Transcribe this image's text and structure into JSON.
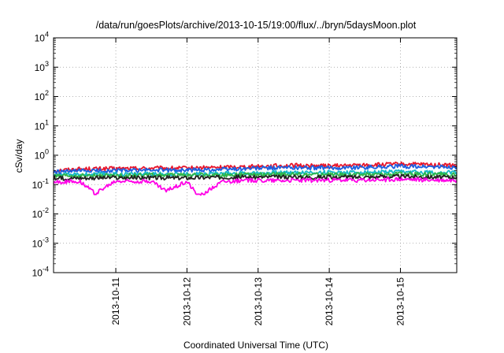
{
  "chart_data": {
    "type": "line",
    "title": "/data/run/goesPlots/archive/2013-10-15/19:00/flux/../bryn/5daysMoon.plot",
    "xlabel": "Coordinated Universal Time (UTC)",
    "ylabel": "cSv/day",
    "yscale": "log",
    "ylim": [
      0.0001,
      10000
    ],
    "xlim": [
      "2013-10-10T03:00",
      "2013-10-15T19:00"
    ],
    "grid": true,
    "legend": "none",
    "y_ticks": [
      {
        "base": "10",
        "exp": "-4"
      },
      {
        "base": "10",
        "exp": "-3"
      },
      {
        "base": "10",
        "exp": "-2"
      },
      {
        "base": "10",
        "exp": "-1"
      },
      {
        "base": "10",
        "exp": "0"
      },
      {
        "base": "10",
        "exp": "1"
      },
      {
        "base": "10",
        "exp": "2"
      },
      {
        "base": "10",
        "exp": "3"
      },
      {
        "base": "10",
        "exp": "4"
      }
    ],
    "x_ticks": [
      "2013-10-11",
      "2013-10-12",
      "2013-10-13",
      "2013-10-14",
      "2013-10-15"
    ],
    "series": [
      {
        "color": "#e8162b",
        "values": [
          [
            "2013-10-10T03:00",
            0.3
          ],
          [
            "2013-10-10T12:00",
            0.34
          ],
          [
            "2013-10-11T00:00",
            0.35
          ],
          [
            "2013-10-11T12:00",
            0.36
          ],
          [
            "2013-10-12T00:00",
            0.36
          ],
          [
            "2013-10-12T12:00",
            0.39
          ],
          [
            "2013-10-13T00:00",
            0.42
          ],
          [
            "2013-10-13T12:00",
            0.45
          ],
          [
            "2013-10-14T00:00",
            0.43
          ],
          [
            "2013-10-14T12:00",
            0.46
          ],
          [
            "2013-10-15T00:00",
            0.5
          ],
          [
            "2013-10-15T12:00",
            0.47
          ],
          [
            "2013-10-15T19:00",
            0.45
          ]
        ]
      },
      {
        "color": "#1c5fe0",
        "values": [
          [
            "2013-10-10T03:00",
            0.26
          ],
          [
            "2013-10-10T12:00",
            0.29
          ],
          [
            "2013-10-11T00:00",
            0.3
          ],
          [
            "2013-10-11T12:00",
            0.31
          ],
          [
            "2013-10-12T00:00",
            0.31
          ],
          [
            "2013-10-12T12:00",
            0.33
          ],
          [
            "2013-10-13T00:00",
            0.36
          ],
          [
            "2013-10-13T12:00",
            0.38
          ],
          [
            "2013-10-14T00:00",
            0.37
          ],
          [
            "2013-10-14T12:00",
            0.39
          ],
          [
            "2013-10-15T00:00",
            0.42
          ],
          [
            "2013-10-15T12:00",
            0.4
          ],
          [
            "2013-10-15T19:00",
            0.38
          ]
        ]
      },
      {
        "color": "#14b8c8",
        "values": [
          [
            "2013-10-10T03:00",
            0.21
          ],
          [
            "2013-10-10T12:00",
            0.22
          ],
          [
            "2013-10-11T00:00",
            0.23
          ],
          [
            "2013-10-11T12:00",
            0.23
          ],
          [
            "2013-10-12T00:00",
            0.23
          ],
          [
            "2013-10-12T12:00",
            0.24
          ],
          [
            "2013-10-13T00:00",
            0.25
          ],
          [
            "2013-10-13T12:00",
            0.26
          ],
          [
            "2013-10-14T00:00",
            0.26
          ],
          [
            "2013-10-14T12:00",
            0.26
          ],
          [
            "2013-10-15T00:00",
            0.27
          ],
          [
            "2013-10-15T12:00",
            0.26
          ],
          [
            "2013-10-15T19:00",
            0.26
          ]
        ]
      },
      {
        "color": "#2fb64a",
        "values": [
          [
            "2013-10-10T03:00",
            0.19
          ],
          [
            "2013-10-10T12:00",
            0.2
          ],
          [
            "2013-10-11T00:00",
            0.2
          ],
          [
            "2013-10-11T12:00",
            0.21
          ],
          [
            "2013-10-12T00:00",
            0.21
          ],
          [
            "2013-10-12T12:00",
            0.21
          ],
          [
            "2013-10-13T00:00",
            0.22
          ],
          [
            "2013-10-13T12:00",
            0.22
          ],
          [
            "2013-10-14T00:00",
            0.22
          ],
          [
            "2013-10-14T12:00",
            0.22
          ],
          [
            "2013-10-15T00:00",
            0.23
          ],
          [
            "2013-10-15T12:00",
            0.22
          ],
          [
            "2013-10-15T19:00",
            0.22
          ]
        ]
      },
      {
        "color": "#222222",
        "values": [
          [
            "2013-10-10T03:00",
            0.16
          ],
          [
            "2013-10-10T12:00",
            0.17
          ],
          [
            "2013-10-11T00:00",
            0.17
          ],
          [
            "2013-10-11T12:00",
            0.17
          ],
          [
            "2013-10-12T00:00",
            0.17
          ],
          [
            "2013-10-12T12:00",
            0.18
          ],
          [
            "2013-10-13T00:00",
            0.18
          ],
          [
            "2013-10-13T12:00",
            0.18
          ],
          [
            "2013-10-14T00:00",
            0.18
          ],
          [
            "2013-10-14T12:00",
            0.18
          ],
          [
            "2013-10-15T00:00",
            0.19
          ],
          [
            "2013-10-15T12:00",
            0.18
          ],
          [
            "2013-10-15T19:00",
            0.18
          ]
        ]
      },
      {
        "color": "#ff00e6",
        "values": [
          [
            "2013-10-10T03:00",
            0.12
          ],
          [
            "2013-10-10T12:00",
            0.13
          ],
          [
            "2013-10-10T17:00",
            0.05
          ],
          [
            "2013-10-11T00:00",
            0.13
          ],
          [
            "2013-10-11T12:00",
            0.13
          ],
          [
            "2013-10-11T17:00",
            0.06
          ],
          [
            "2013-10-12T00:00",
            0.13
          ],
          [
            "2013-10-12T04:00",
            0.04
          ],
          [
            "2013-10-12T12:00",
            0.13
          ],
          [
            "2013-10-13T00:00",
            0.14
          ],
          [
            "2013-10-13T12:00",
            0.14
          ],
          [
            "2013-10-14T00:00",
            0.14
          ],
          [
            "2013-10-14T12:00",
            0.14
          ],
          [
            "2013-10-15T00:00",
            0.15
          ],
          [
            "2013-10-15T12:00",
            0.14
          ],
          [
            "2013-10-15T19:00",
            0.14
          ]
        ]
      }
    ]
  }
}
